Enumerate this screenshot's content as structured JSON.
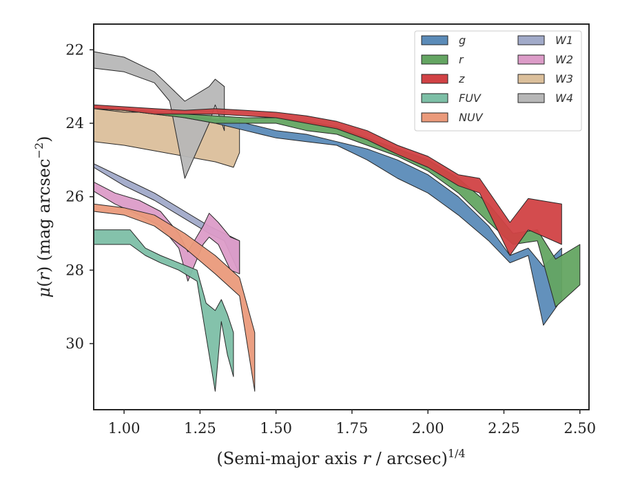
{
  "chart_data": {
    "type": "area",
    "xlabel": "(Semi-major axis r / arcsec)^1/4",
    "ylabel": "μ(r) (mag arcsec−2)",
    "xlim": [
      0.9,
      2.53
    ],
    "ylim": [
      31.8,
      21.3
    ],
    "y_inverted": true,
    "grid": false,
    "legend_position": "top-right",
    "legend_columns": 2,
    "x_ticks": [
      "1.00",
      "1.25",
      "1.50",
      "1.75",
      "2.00",
      "2.25",
      "2.50"
    ],
    "y_ticks": [
      "22",
      "24",
      "26",
      "28",
      "30"
    ],
    "series": [
      {
        "name": "g",
        "color": "#5b8bb8",
        "x": [
          0.9,
          1.0,
          1.1,
          1.2,
          1.3,
          1.4,
          1.5,
          1.6,
          1.7,
          1.8,
          1.9,
          2.0,
          2.1,
          2.2,
          2.27,
          2.33,
          2.38,
          2.44
        ],
        "y_upper": [
          23.6,
          23.7,
          23.7,
          23.8,
          23.9,
          24.0,
          24.2,
          24.3,
          24.5,
          24.7,
          25.0,
          25.4,
          26.0,
          26.8,
          27.6,
          27.4,
          27.9,
          27.4
        ],
        "y_lower": [
          23.6,
          23.7,
          23.7,
          23.85,
          24.0,
          24.2,
          24.4,
          24.5,
          24.6,
          25.0,
          25.5,
          25.9,
          26.5,
          27.2,
          27.8,
          27.6,
          29.5,
          28.8
        ]
      },
      {
        "name": "r",
        "color": "#64a562",
        "x": [
          0.9,
          1.0,
          1.1,
          1.2,
          1.3,
          1.4,
          1.5,
          1.6,
          1.7,
          1.8,
          1.9,
          2.0,
          2.1,
          2.2,
          2.28,
          2.36,
          2.42,
          2.5
        ],
        "y_upper": [
          23.55,
          23.6,
          23.7,
          23.75,
          23.8,
          23.85,
          23.85,
          23.95,
          24.1,
          24.4,
          24.7,
          25.0,
          25.5,
          26.2,
          27.0,
          26.9,
          27.7,
          27.3
        ],
        "y_lower": [
          23.6,
          23.65,
          23.75,
          23.85,
          24.0,
          24.0,
          24.0,
          24.2,
          24.3,
          24.6,
          24.9,
          25.3,
          25.9,
          26.7,
          27.3,
          27.2,
          29.0,
          28.4
        ]
      },
      {
        "name": "z",
        "color": "#d14245",
        "x": [
          0.9,
          1.0,
          1.1,
          1.2,
          1.3,
          1.4,
          1.5,
          1.6,
          1.7,
          1.8,
          1.9,
          2.0,
          2.1,
          2.17,
          2.27,
          2.33,
          2.44
        ],
        "y_upper": [
          23.5,
          23.55,
          23.6,
          23.65,
          23.6,
          23.65,
          23.7,
          23.8,
          23.95,
          24.2,
          24.6,
          24.9,
          25.4,
          25.5,
          26.7,
          26.05,
          26.2
        ],
        "y_lower": [
          23.6,
          23.65,
          23.75,
          23.75,
          23.75,
          23.8,
          23.85,
          24.0,
          24.15,
          24.45,
          24.85,
          25.2,
          25.7,
          25.9,
          27.6,
          26.9,
          27.3
        ]
      },
      {
        "name": "FUV",
        "color": "#7dbfa6",
        "x": [
          0.9,
          1.02,
          1.07,
          1.12,
          1.18,
          1.24,
          1.27,
          1.3,
          1.32,
          1.34,
          1.36
        ],
        "y_upper": [
          26.9,
          26.9,
          27.4,
          27.6,
          27.8,
          28.0,
          28.9,
          29.1,
          28.8,
          29.2,
          29.7
        ],
        "y_lower": [
          27.3,
          27.3,
          27.6,
          27.8,
          28.0,
          28.3,
          29.8,
          31.3,
          29.4,
          30.3,
          30.9
        ]
      },
      {
        "name": "NUV",
        "color": "#ea9a7b",
        "x": [
          0.9,
          1.0,
          1.1,
          1.2,
          1.3,
          1.38,
          1.43
        ],
        "y_upper": [
          26.2,
          26.3,
          26.5,
          27.0,
          27.6,
          28.2,
          29.7
        ],
        "y_lower": [
          26.4,
          26.5,
          26.8,
          27.4,
          28.1,
          28.7,
          31.3
        ]
      },
      {
        "name": "W1",
        "color": "#a1aac9",
        "x": [
          0.9,
          1.0,
          1.1,
          1.2,
          1.28,
          1.33,
          1.38
        ],
        "y_upper": [
          25.1,
          25.5,
          25.9,
          26.4,
          26.8,
          27.0,
          27.2
        ],
        "y_lower": [
          25.2,
          25.7,
          26.1,
          26.6,
          27.0,
          27.2,
          28.1
        ]
      },
      {
        "name": "W2",
        "color": "#dc9cc8",
        "x": [
          0.9,
          0.97,
          1.05,
          1.12,
          1.18,
          1.21,
          1.26,
          1.28,
          1.31,
          1.35,
          1.38
        ],
        "y_upper": [
          25.6,
          25.9,
          26.1,
          26.4,
          27.0,
          27.5,
          26.8,
          26.45,
          26.7,
          27.1,
          27.2
        ],
        "y_lower": [
          25.85,
          26.2,
          26.5,
          26.8,
          27.4,
          28.3,
          27.3,
          27.1,
          27.3,
          28.0,
          28.1
        ]
      },
      {
        "name": "W3",
        "color": "#dbbf9b",
        "x": [
          0.9,
          1.0,
          1.1,
          1.2,
          1.3,
          1.36,
          1.38
        ],
        "y_upper": [
          23.6,
          23.65,
          23.75,
          23.85,
          23.9,
          23.95,
          23.9
        ],
        "y_lower": [
          24.5,
          24.6,
          24.75,
          24.9,
          25.05,
          25.2,
          24.8
        ]
      },
      {
        "name": "W4",
        "color": "#b7b7b7",
        "x": [
          0.9,
          1.0,
          1.05,
          1.1,
          1.15,
          1.2,
          1.28,
          1.3,
          1.33
        ],
        "y_upper": [
          22.05,
          22.2,
          22.4,
          22.6,
          23.0,
          23.4,
          23.0,
          22.8,
          23.0
        ],
        "y_lower": [
          22.5,
          22.6,
          22.75,
          22.9,
          23.4,
          25.5,
          24.0,
          23.5,
          24.2
        ]
      }
    ]
  }
}
